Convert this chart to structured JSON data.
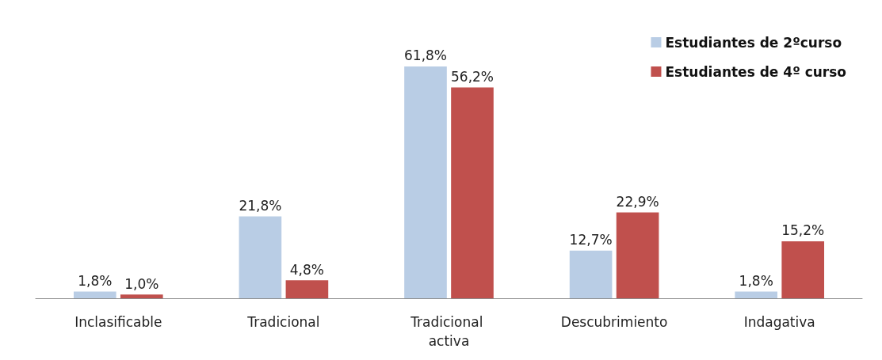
{
  "chart_data": {
    "type": "bar",
    "categories": [
      "Inclasificable",
      "Tradicional",
      "Tradicional activa",
      "Descubrimiento",
      "Indagativa"
    ],
    "series": [
      {
        "name": "Estudiantes de 2ºcurso",
        "color": "#b9cde5",
        "values": [
          1.8,
          21.8,
          61.8,
          12.7,
          1.8
        ],
        "value_labels": [
          "1,8%",
          "21,8%",
          "61,8%",
          "12,7%",
          "1,8%"
        ]
      },
      {
        "name": "Estudiantes de 4º curso",
        "color": "#c0504d",
        "values": [
          1.0,
          4.8,
          56.2,
          22.9,
          15.2
        ],
        "value_labels": [
          "1,0%",
          "4,8%",
          "56,2%",
          "22,9%",
          "15,2%"
        ]
      }
    ],
    "legend": "top right"
  }
}
